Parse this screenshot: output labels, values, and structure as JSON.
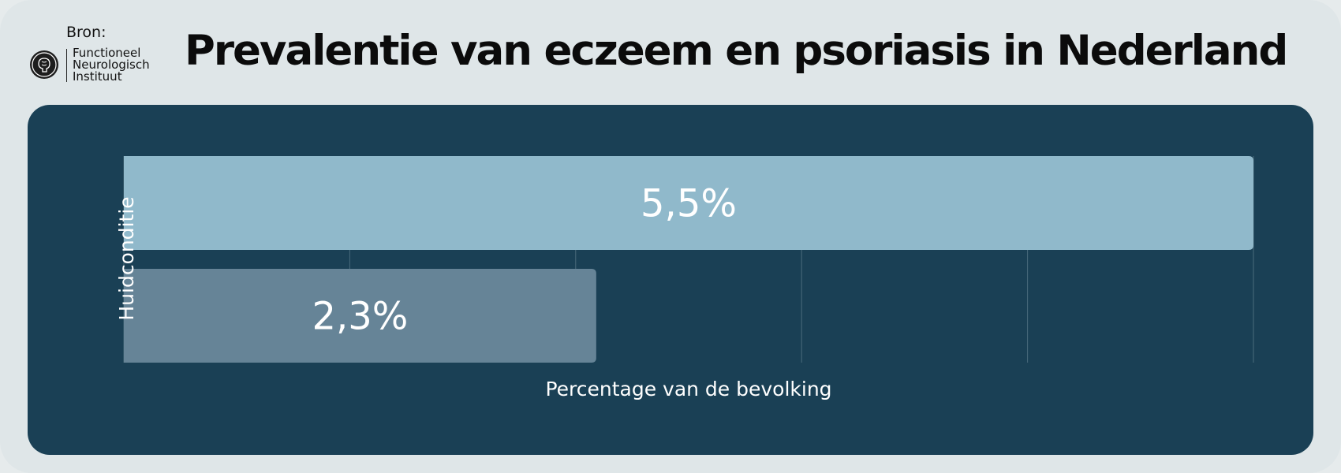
{
  "source": {
    "label": "Bron:",
    "logo_icon": "brain-circle-icon",
    "org_lines": [
      "Functioneel",
      "Neurologisch",
      "Instituut"
    ]
  },
  "chart_data": {
    "type": "bar",
    "orientation": "horizontal",
    "title": "Prevalentie van eczeem en psoriasis in Nederland",
    "xlabel": "Percentage van de bevolking",
    "ylabel": "Huidconditie",
    "xlim": [
      0,
      5.5
    ],
    "grid": "vertical",
    "gridlines": 5,
    "bars": [
      {
        "value": 5.5,
        "label": "5,5%",
        "color": "#90b9cb"
      },
      {
        "value": 2.3,
        "label": "2,3%",
        "color": "#668497"
      }
    ],
    "colors": {
      "panel": "#1a4055",
      "grid": "#4a6b7c",
      "text": "#ffffff"
    }
  }
}
